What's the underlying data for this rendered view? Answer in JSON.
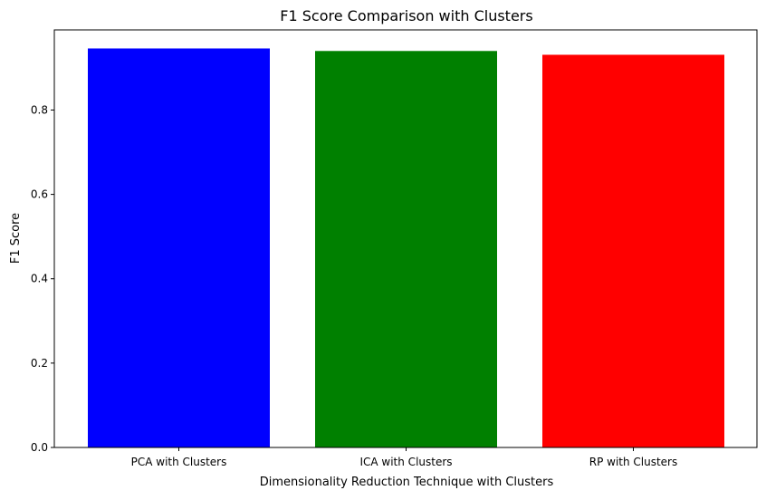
{
  "chart_data": {
    "type": "bar",
    "title": "F1 Score Comparison with Clusters",
    "xlabel": "Dimensionality Reduction Technique with Clusters",
    "ylabel": "F1 Score",
    "categories": [
      "PCA with Clusters",
      "ICA with Clusters",
      "RP with Clusters"
    ],
    "values": [
      0.946,
      0.94,
      0.931
    ],
    "colors": [
      "#0000ff",
      "#008000",
      "#ff0000"
    ],
    "ylim": [
      0,
      0.99
    ],
    "yticks": [
      0.0,
      0.2,
      0.4,
      0.6,
      0.8
    ],
    "ytick_labels": [
      "0.0",
      "0.2",
      "0.4",
      "0.6",
      "0.8"
    ],
    "grid": false,
    "legend": "none"
  }
}
